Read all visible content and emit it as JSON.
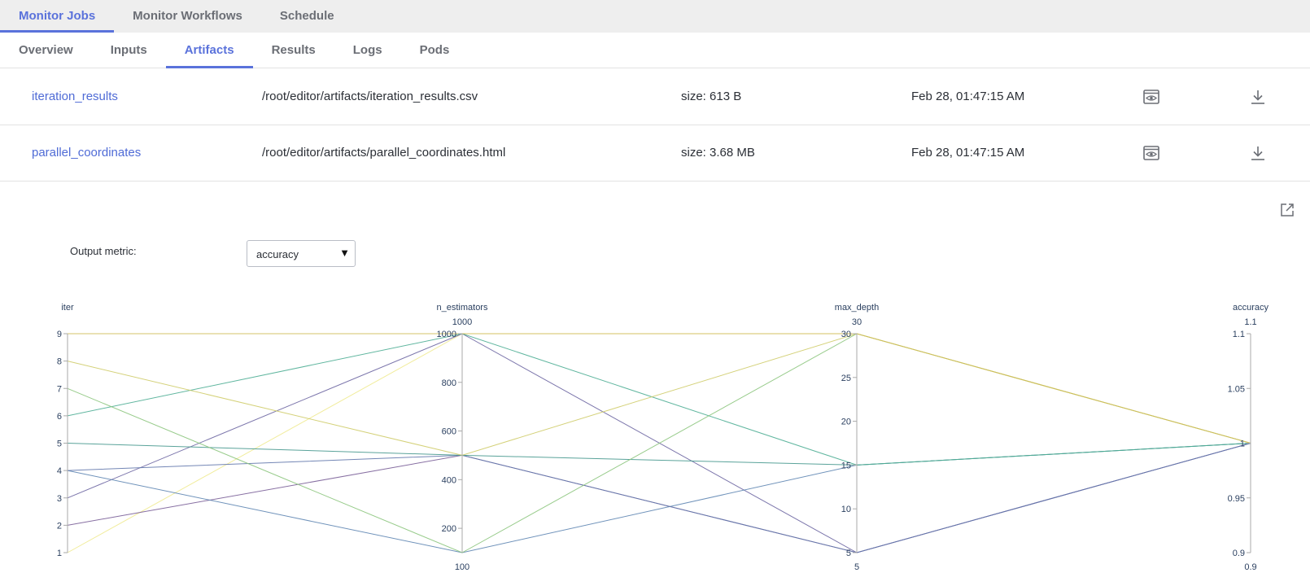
{
  "top_tabs": [
    {
      "label": "Monitor Jobs",
      "active": true
    },
    {
      "label": "Monitor Workflows",
      "active": false
    },
    {
      "label": "Schedule",
      "active": false
    }
  ],
  "sub_tabs": [
    {
      "label": "Overview",
      "active": false
    },
    {
      "label": "Inputs",
      "active": false
    },
    {
      "label": "Artifacts",
      "active": true
    },
    {
      "label": "Results",
      "active": false
    },
    {
      "label": "Logs",
      "active": false
    },
    {
      "label": "Pods",
      "active": false
    }
  ],
  "artifacts": [
    {
      "name": "iteration_results",
      "path": "/root/editor/artifacts/iteration_results.csv",
      "size": "size: 613 B",
      "date": "Feb 28, 01:47:15 AM",
      "preview_icon": "eye-icon",
      "download_icon": "download-icon"
    },
    {
      "name": "parallel_coordinates",
      "path": "/root/editor/artifacts/parallel_coordinates.html",
      "size": "size: 3.68 MB",
      "date": "Feb 28, 01:47:15 AM",
      "preview_icon": "eye-icon",
      "download_icon": "download-icon"
    }
  ],
  "preview": {
    "external_icon": "external-link-icon",
    "metric_label": "Output metric:",
    "metric_value": "accuracy"
  },
  "chart_data": {
    "type": "parallel_coordinates",
    "dimensions": [
      {
        "name": "iter",
        "range": [
          1,
          9
        ],
        "ticks": [
          "1",
          "2",
          "3",
          "4",
          "5",
          "6",
          "7",
          "8",
          "9"
        ],
        "min_label": "",
        "max_label": ""
      },
      {
        "name": "n_estimators",
        "range": [
          100,
          1000
        ],
        "ticks": [
          "200",
          "400",
          "600",
          "800",
          "1000"
        ],
        "min_label": "100",
        "max_label": "1000"
      },
      {
        "name": "max_depth",
        "range": [
          5,
          30
        ],
        "ticks": [
          "5",
          "10",
          "15",
          "20",
          "25",
          "30"
        ],
        "min_label": "5",
        "max_label": "30"
      },
      {
        "name": "accuracy",
        "range": [
          0.9,
          1.1
        ],
        "ticks": [
          "0.9",
          "0.95",
          "1",
          "1.05",
          "1.1"
        ],
        "min_label": "0.9",
        "max_label": "1.1"
      }
    ],
    "lines": [
      {
        "values": [
          1,
          1000,
          30,
          1
        ],
        "color": "#f0ea90"
      },
      {
        "values": [
          2,
          500,
          5,
          1
        ],
        "color": "#7a5f98"
      },
      {
        "values": [
          3,
          1000,
          5,
          1
        ],
        "color": "#6d66a2"
      },
      {
        "values": [
          4,
          100,
          15,
          1
        ],
        "color": "#5f86b3"
      },
      {
        "values": [
          4,
          500,
          5,
          1
        ],
        "color": "#6479ad"
      },
      {
        "values": [
          5,
          500,
          15,
          1
        ],
        "color": "#48998f"
      },
      {
        "values": [
          6,
          1000,
          15,
          1
        ],
        "color": "#4fae95"
      },
      {
        "values": [
          7,
          100,
          30,
          1
        ],
        "color": "#8cc57d"
      },
      {
        "values": [
          8,
          500,
          30,
          1
        ],
        "color": "#cfcc6a"
      },
      {
        "values": [
          9,
          1000,
          30,
          1
        ],
        "color": "#d0bd5a"
      }
    ],
    "line_colors_note": ""
  }
}
